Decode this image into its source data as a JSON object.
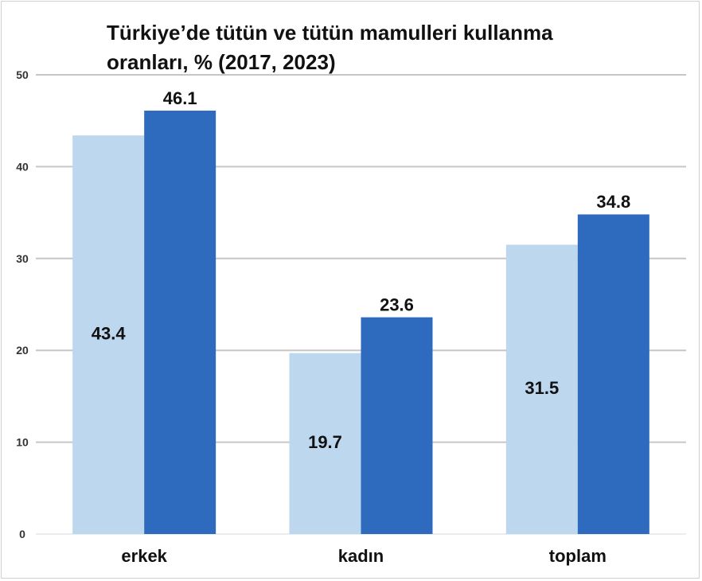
{
  "chart_data": {
    "type": "bar",
    "title_lines": [
      "Türkiye’de tütün ve tütün mamulleri kullanma",
      "oranları, % (2017, 2023)"
    ],
    "xlabel": "",
    "ylabel": "",
    "categories": [
      "erkek",
      "kadın",
      "toplam"
    ],
    "series": [
      {
        "values": [
          43.4,
          19.7,
          31.5
        ],
        "color": "#bdd7ee"
      },
      {
        "values": [
          46.1,
          23.6,
          34.8
        ],
        "color": "#2e6bbf"
      }
    ],
    "ylim": [
      0,
      50
    ],
    "yticks": [
      0,
      10,
      20,
      30,
      40,
      50
    ],
    "grid": true,
    "legend": "none"
  }
}
